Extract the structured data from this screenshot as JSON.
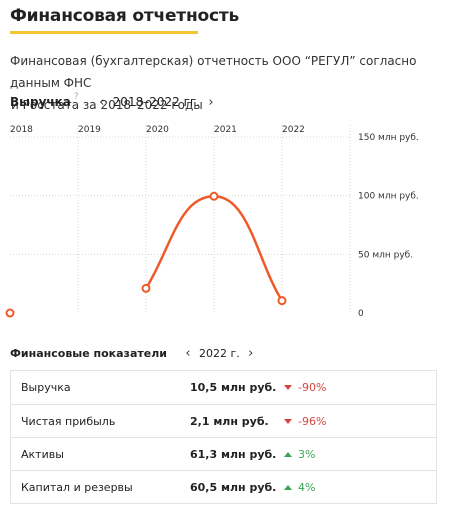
{
  "page": {
    "title": "Финансовая отчетность",
    "subtitle_line1": "Финансовая (бухгалтерская) отчетность ООО “РЕГУЛ” согласно данным ФНС",
    "subtitle_line2": "и Росстата за 2018–2022 годы"
  },
  "revenue_nav": {
    "label": "Выручка",
    "help": "?",
    "prev": "‹",
    "period": "2018–2022 гг.",
    "next": "›"
  },
  "chart_data": {
    "type": "line",
    "x": [
      "2018",
      "2019",
      "2020",
      "2021",
      "2022"
    ],
    "series": [
      {
        "values": [
          0,
          null,
          21,
          99.5,
          10.5
        ]
      }
    ],
    "y_ticks": [
      "0",
      "50 млн руб.",
      "100 млн руб.",
      "150 млн руб."
    ],
    "ylim": [
      0,
      150
    ],
    "grid": true,
    "color": "#f05a28"
  },
  "fin_nav": {
    "label": "Финансовые показатели",
    "prev": "‹",
    "period": "2022 г.",
    "next": "›"
  },
  "table": {
    "rows": [
      {
        "name": "Выручка",
        "value": "10,5 млн руб.",
        "change": "-90%",
        "direction": "down"
      },
      {
        "name": "Чистая прибыль",
        "value": "2,1 млн руб.",
        "change": "-96%",
        "direction": "down"
      },
      {
        "name": "Активы",
        "value": "61,3 млн руб.",
        "change": "3%",
        "direction": "up"
      },
      {
        "name": "Капитал и резервы",
        "value": "60,5 млн руб.",
        "change": "4%",
        "direction": "up"
      }
    ]
  },
  "colors": {
    "accent": "#f4c531",
    "line": "#f05a28",
    "negative": "#d64541",
    "positive": "#3aa655"
  }
}
